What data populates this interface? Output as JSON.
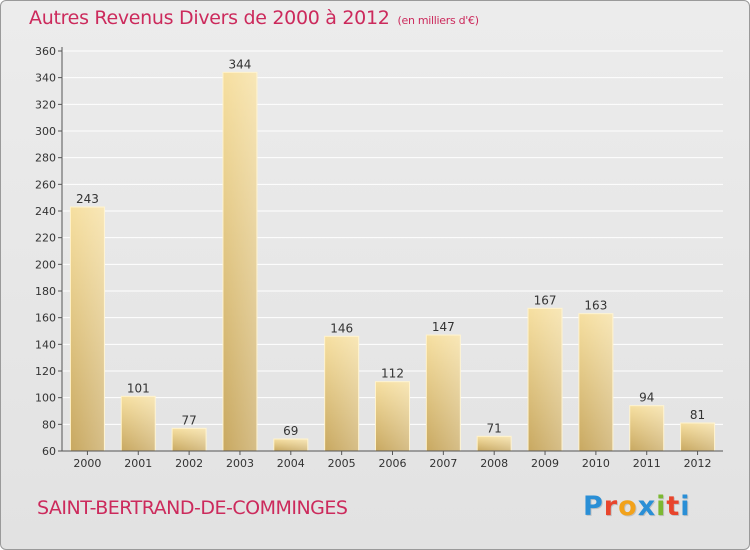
{
  "header": {
    "title": "Autres Revenus Divers de 2000 à 2012",
    "subtitle": "(en milliers d'€)"
  },
  "footer": {
    "commune": "SAINT-BERTRAND-DE-COMMINGES",
    "brand": "Proxiti"
  },
  "colors": {
    "title": "#cc2a5c",
    "bar_light": "#f6dfa0",
    "bar_dark": "#c8a860",
    "grid": "#ffffff",
    "brand_letters": [
      "#2a8fd6",
      "#e8452c",
      "#f2a21b",
      "#2a8fd6",
      "#7cb832",
      "#e8452c",
      "#2a8fd6"
    ]
  },
  "chart_data": {
    "type": "bar",
    "title": "Autres Revenus Divers de 2000 à 2012",
    "subtitle": "(en milliers d'€)",
    "categories": [
      "2000",
      "2001",
      "2002",
      "2003",
      "2004",
      "2005",
      "2006",
      "2007",
      "2008",
      "2009",
      "2010",
      "2011",
      "2012"
    ],
    "values": [
      243,
      101,
      77,
      344,
      69,
      146,
      112,
      147,
      71,
      167,
      163,
      94,
      81
    ],
    "ylim": [
      60,
      360
    ],
    "yticks": [
      60,
      80,
      100,
      120,
      140,
      160,
      180,
      200,
      220,
      240,
      260,
      280,
      300,
      320,
      340,
      360
    ],
    "grid": true,
    "data_labels": true
  }
}
